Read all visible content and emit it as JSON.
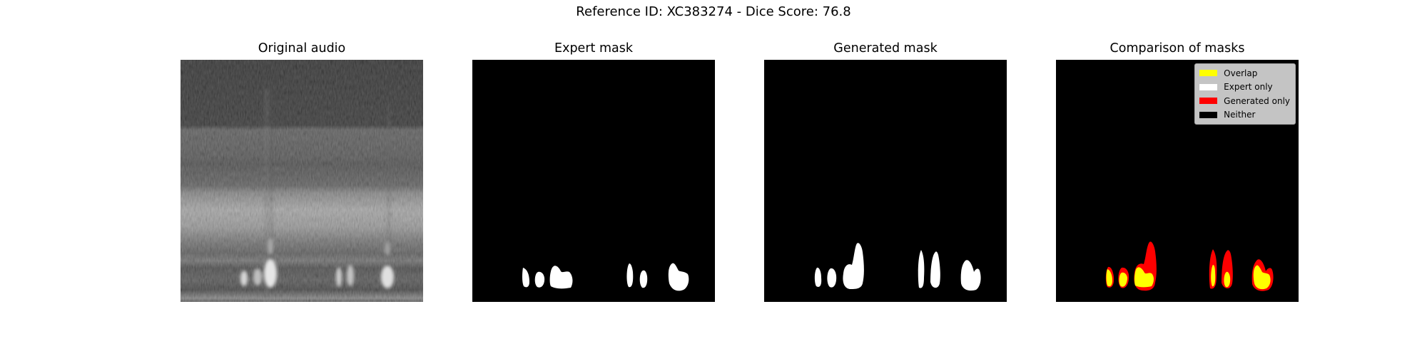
{
  "suptitle": "Reference ID: XC383274 - Dice Score: 76.8",
  "panels": [
    {
      "title": "Original audio"
    },
    {
      "title": "Expert mask"
    },
    {
      "title": "Generated mask"
    },
    {
      "title": "Comparison of masks"
    }
  ],
  "legend": {
    "items": [
      {
        "label": "Overlap",
        "color": "#ffff00"
      },
      {
        "label": "Expert only",
        "color": "#ffffff"
      },
      {
        "label": "Generated only",
        "color": "#ff0000"
      },
      {
        "label": "Neither",
        "color": "#000000"
      }
    ]
  },
  "chart_data": {
    "type": "heatmap",
    "suptitle": "Reference ID: XC383274 - Dice Score: 76.8",
    "dice_score": 76.8,
    "colors": {
      "background": "#000000",
      "mask": "#ffffff",
      "overlap": "#ffff00",
      "expert_only": "#ffffff",
      "generated_only": "#ff0000",
      "neither": "#000000"
    },
    "grid": false,
    "legend_position": "top-right",
    "legend_panel": "Comparison of masks",
    "subplots": [
      "Original audio",
      "Expert mask",
      "Generated mask",
      "Comparison of masks"
    ]
  }
}
